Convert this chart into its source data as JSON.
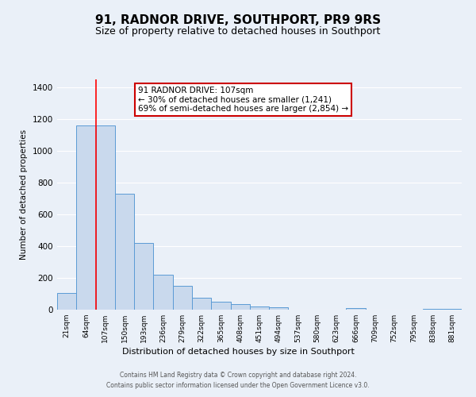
{
  "title": "91, RADNOR DRIVE, SOUTHPORT, PR9 9RS",
  "subtitle": "Size of property relative to detached houses in Southport",
  "xlabel": "Distribution of detached houses by size in Southport",
  "ylabel": "Number of detached properties",
  "bar_labels": [
    "21sqm",
    "64sqm",
    "107sqm",
    "150sqm",
    "193sqm",
    "236sqm",
    "279sqm",
    "322sqm",
    "365sqm",
    "408sqm",
    "451sqm",
    "494sqm",
    "537sqm",
    "580sqm",
    "623sqm",
    "666sqm",
    "709sqm",
    "752sqm",
    "795sqm",
    "838sqm",
    "881sqm"
  ],
  "bar_values": [
    107,
    1160,
    1160,
    730,
    420,
    220,
    150,
    75,
    50,
    35,
    20,
    15,
    0,
    0,
    0,
    10,
    0,
    0,
    0,
    5,
    5
  ],
  "bar_color": "#c9d9ed",
  "bar_edge_color": "#5b9bd5",
  "red_line_index": 2,
  "annotation_text": "91 RADNOR DRIVE: 107sqm\n← 30% of detached houses are smaller (1,241)\n69% of semi-detached houses are larger (2,854) →",
  "ylim": [
    0,
    1450
  ],
  "yticks": [
    0,
    200,
    400,
    600,
    800,
    1000,
    1200,
    1400
  ],
  "footer_line1": "Contains HM Land Registry data © Crown copyright and database right 2024.",
  "footer_line2": "Contains public sector information licensed under the Open Government Licence v3.0.",
  "bg_color": "#eaf0f8",
  "title_fontsize": 11,
  "subtitle_fontsize": 9,
  "annotation_box_facecolor": "#ffffff",
  "annotation_box_edgecolor": "#cc0000",
  "footer_color": "#555555"
}
